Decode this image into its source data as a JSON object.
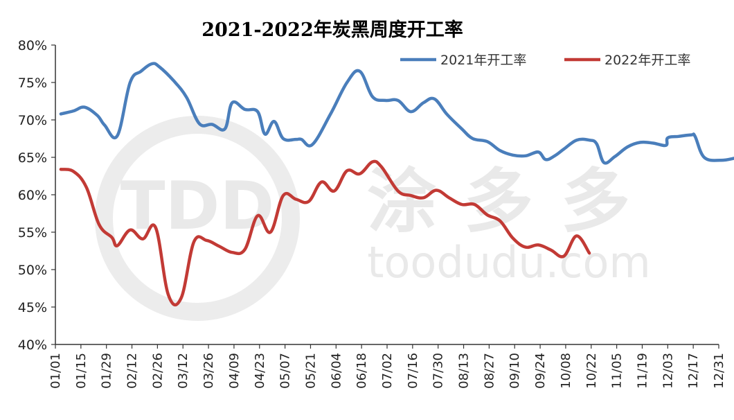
{
  "watermark": {
    "logo_text": "TDD",
    "cn_text": "涂多多",
    "url": "toodudu.com"
  },
  "chart_data": {
    "type": "line",
    "title": "2021-2022年炭黑周度开工率",
    "xlabel": "",
    "ylabel": "",
    "ylim": [
      40,
      80
    ],
    "y_ticks": [
      "40%",
      "45%",
      "50%",
      "55%",
      "60%",
      "65%",
      "70%",
      "75%",
      "80%"
    ],
    "x_ticks": [
      "01/01",
      "01/15",
      "01/29",
      "02/12",
      "02/26",
      "03/12",
      "03/26",
      "04/09",
      "04/23",
      "05/07",
      "05/21",
      "06/04",
      "06/18",
      "07/02",
      "07/16",
      "07/30",
      "08/13",
      "08/27",
      "09/10",
      "09/24",
      "10/08",
      "10/22",
      "11/05",
      "11/19",
      "12/03",
      "12/17",
      "12/31"
    ],
    "x_unit": "day of year",
    "grid": false,
    "legend_position": "top-right",
    "series": [
      {
        "name": "2021年开工率",
        "color": "#4a7ebb",
        "points": [
          [
            4,
            70.8
          ],
          [
            11,
            71.2
          ],
          [
            17,
            71.7
          ],
          [
            24,
            70.6
          ],
          [
            28,
            69.3
          ],
          [
            35,
            67.9
          ],
          [
            42,
            75
          ],
          [
            48,
            76.5
          ],
          [
            54,
            77.5
          ],
          [
            58,
            77.1
          ],
          [
            66,
            75.2
          ],
          [
            73,
            73
          ],
          [
            80,
            69.5
          ],
          [
            87,
            69.4
          ],
          [
            94,
            68.8
          ],
          [
            98,
            72.3
          ],
          [
            105,
            71.4
          ],
          [
            112,
            71.1
          ],
          [
            116,
            68.1
          ],
          [
            121,
            69.8
          ],
          [
            126,
            67.5
          ],
          [
            133,
            67.4
          ],
          [
            136,
            67.4
          ],
          [
            142,
            66.7
          ],
          [
            152,
            70.8
          ],
          [
            161,
            75
          ],
          [
            168,
            76.5
          ],
          [
            175,
            73.1
          ],
          [
            182,
            72.6
          ],
          [
            189,
            72.6
          ],
          [
            196,
            71.1
          ],
          [
            203,
            72.3
          ],
          [
            209,
            72.8
          ],
          [
            216,
            70.7
          ],
          [
            224,
            68.8
          ],
          [
            230,
            67.5
          ],
          [
            238,
            67.1
          ],
          [
            245,
            65.9
          ],
          [
            252,
            65.3
          ],
          [
            259,
            65.2
          ],
          [
            266,
            65.7
          ],
          [
            270,
            64.7
          ],
          [
            275,
            65.2
          ],
          [
            280,
            66.1
          ],
          [
            287,
            67.3
          ],
          [
            294,
            67.3
          ],
          [
            298,
            66.8
          ],
          [
            302,
            64.3
          ],
          [
            308,
            65.1
          ],
          [
            315,
            66.4
          ],
          [
            322,
            67
          ],
          [
            329,
            66.9
          ],
          [
            336,
            66.6
          ],
          [
            337,
            67.6
          ],
          [
            343,
            67.8
          ],
          [
            350,
            68
          ],
          [
            352,
            67.8
          ],
          [
            357,
            65
          ],
          [
            366,
            64.6
          ],
          [
            374,
            64.9
          ]
        ]
      },
      {
        "name": "2022年开工率",
        "color": "#c23a35",
        "points": [
          [
            4,
            63.4
          ],
          [
            11,
            63.1
          ],
          [
            18,
            61
          ],
          [
            25,
            56
          ],
          [
            32,
            54.3
          ],
          [
            35,
            53.2
          ],
          [
            42,
            55.3
          ],
          [
            49,
            54.1
          ],
          [
            56,
            55.6
          ],
          [
            63,
            46.6
          ],
          [
            70,
            46.2
          ],
          [
            77,
            53.7
          ],
          [
            84,
            53.9
          ],
          [
            91,
            53.1
          ],
          [
            98,
            52.3
          ],
          [
            105,
            52.7
          ],
          [
            112,
            57.2
          ],
          [
            119,
            55
          ],
          [
            126,
            59.9
          ],
          [
            133,
            59.4
          ],
          [
            140,
            59.1
          ],
          [
            147,
            61.7
          ],
          [
            154,
            60.5
          ],
          [
            161,
            63.2
          ],
          [
            168,
            62.8
          ],
          [
            175,
            64.4
          ],
          [
            180,
            63.7
          ],
          [
            189,
            60.5
          ],
          [
            196,
            59.9
          ],
          [
            203,
            59.6
          ],
          [
            210,
            60.6
          ],
          [
            217,
            59.6
          ],
          [
            224,
            58.7
          ],
          [
            231,
            58.7
          ],
          [
            238,
            57.3
          ],
          [
            245,
            56.5
          ],
          [
            252,
            54.2
          ],
          [
            259,
            53
          ],
          [
            266,
            53.3
          ],
          [
            273,
            52.6
          ],
          [
            280,
            51.8
          ],
          [
            287,
            54.5
          ],
          [
            294,
            52.2
          ]
        ]
      }
    ]
  }
}
